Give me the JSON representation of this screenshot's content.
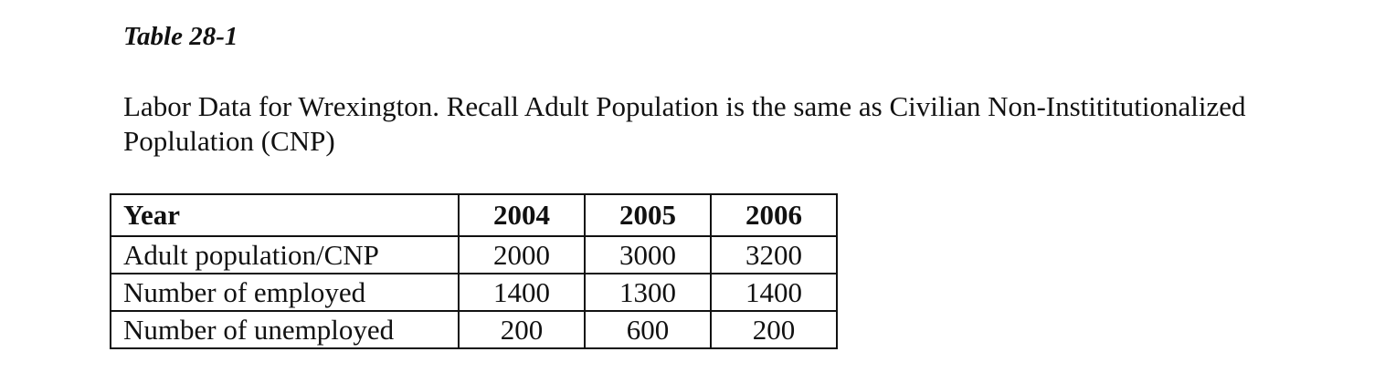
{
  "caption": "Table 28-1",
  "intro": {
    "line1": "Labor Data for Wrexington. Recall Adult Population is the same as Civilian Non-Instititutionalized",
    "line2": "Poplulation (CNP)"
  },
  "table": {
    "header": {
      "label": "Year",
      "years": [
        "2004",
        "2005",
        "2006"
      ]
    },
    "rows": [
      {
        "label": "Adult population/CNP",
        "values": [
          "2000",
          "3000",
          "3200"
        ]
      },
      {
        "label": "Number of employed",
        "values": [
          "1400",
          "1300",
          "1400"
        ]
      },
      {
        "label": "Number of unemployed",
        "values": [
          "200",
          "600",
          "200"
        ]
      }
    ]
  }
}
